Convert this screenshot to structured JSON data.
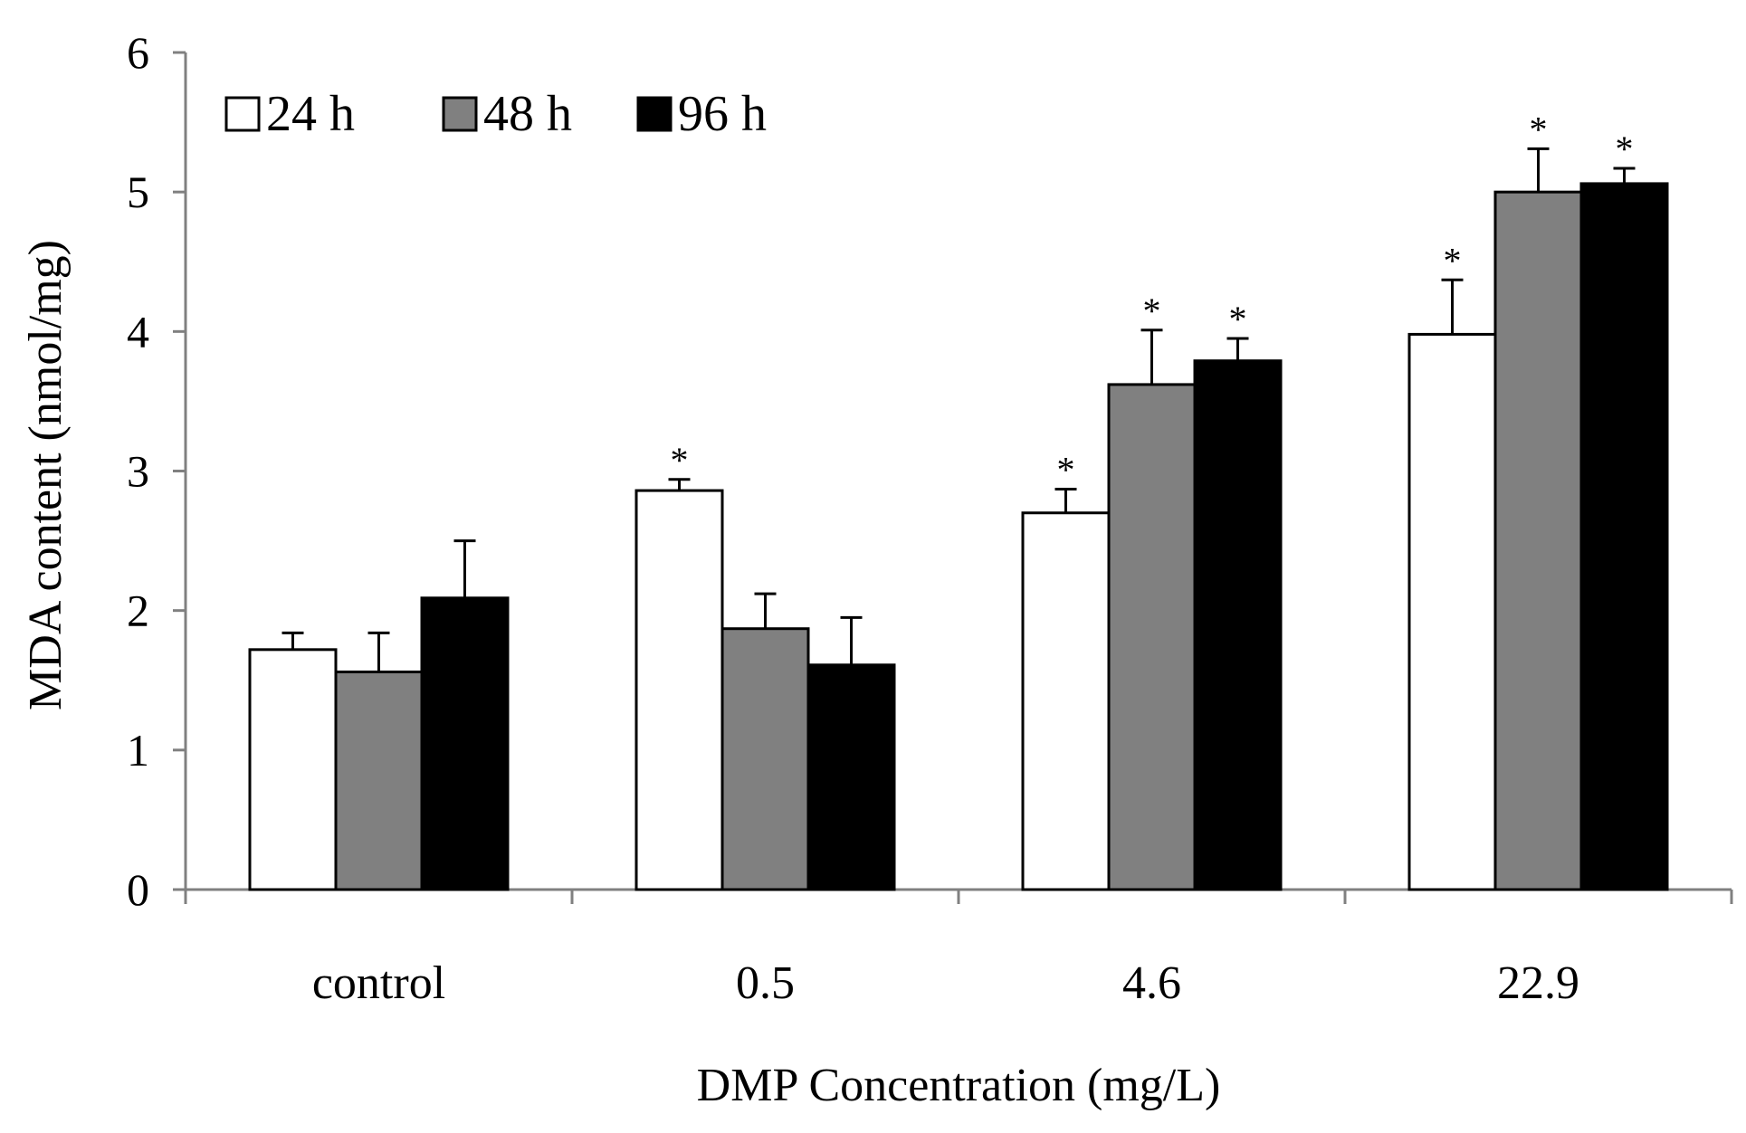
{
  "chart_data": {
    "type": "bar",
    "title": "",
    "xlabel": "DMP Concentration (mg/L)",
    "ylabel": "MDA content (nmol/mg)",
    "ylim": [
      0,
      6
    ],
    "yticks": [
      "0",
      "1",
      "2",
      "3",
      "4",
      "5",
      "6"
    ],
    "categories": [
      "control",
      "0.5",
      "4.6",
      "22.9"
    ],
    "legend_position": "top-left",
    "grid": false,
    "significance_marker": "*",
    "series": [
      {
        "name": "24 h",
        "color": "#ffffff",
        "values": [
          1.72,
          2.86,
          2.7,
          3.98
        ],
        "errors": [
          0.12,
          0.08,
          0.17,
          0.39
        ],
        "significant": [
          false,
          true,
          true,
          true
        ]
      },
      {
        "name": "48 h",
        "color": "#808080",
        "values": [
          1.56,
          1.87,
          3.62,
          5.0
        ],
        "errors": [
          0.28,
          0.25,
          0.39,
          0.31
        ],
        "significant": [
          false,
          false,
          true,
          true
        ]
      },
      {
        "name": "96 h",
        "color": "#000000",
        "values": [
          2.09,
          1.61,
          3.79,
          5.06
        ],
        "errors": [
          0.41,
          0.34,
          0.16,
          0.11
        ],
        "significant": [
          false,
          false,
          true,
          true
        ]
      }
    ]
  }
}
